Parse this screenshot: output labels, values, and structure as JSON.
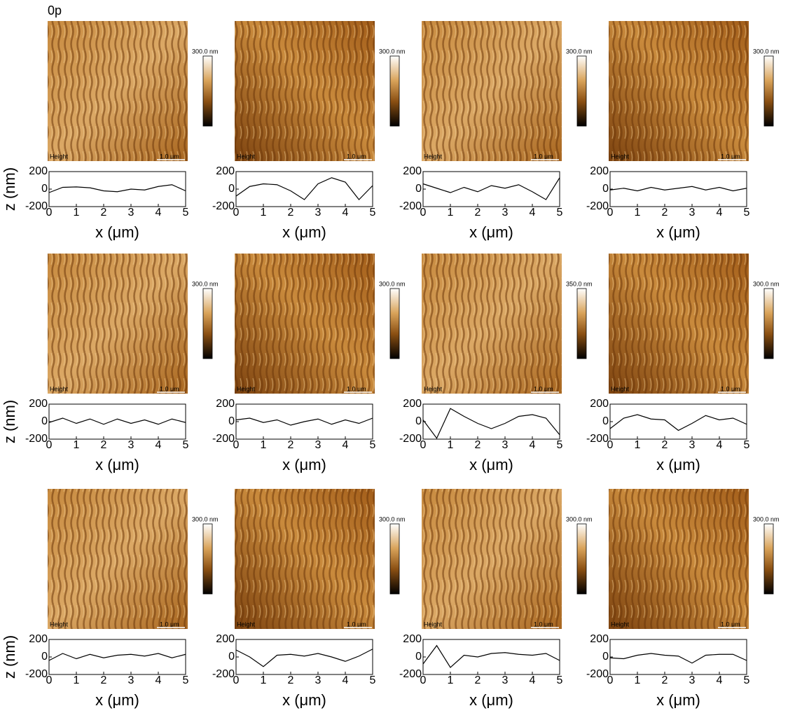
{
  "figure_label": "0p",
  "chart_data": [
    {
      "type": "line",
      "colorbar_label": "300.0 nm",
      "image_label": "Height",
      "scale_bar": "1.0 μm",
      "x": [
        0,
        0.5,
        1,
        1.5,
        2,
        2.5,
        3,
        3.5,
        4,
        4.5,
        5
      ],
      "values": [
        -40,
        20,
        25,
        15,
        -20,
        -30,
        0,
        -10,
        30,
        50,
        -20
      ],
      "color": "#000000",
      "xlim": [
        0,
        5
      ],
      "ylim": [
        -200,
        200
      ],
      "xticks": [
        0,
        1,
        2,
        3,
        4,
        5
      ],
      "yticks": [
        -200,
        0,
        200
      ],
      "xlabel": "x (μm)",
      "ylabel": "z (nm)"
    },
    {
      "type": "line",
      "colorbar_label": "300.0 nm",
      "image_label": "Height",
      "scale_bar": "1.0 μm",
      "x": [
        0,
        0.5,
        1,
        1.5,
        2,
        2.5,
        3,
        3.5,
        4,
        4.5,
        5
      ],
      "values": [
        -80,
        30,
        60,
        50,
        -20,
        -120,
        60,
        130,
        80,
        -120,
        40
      ],
      "color": "#000000",
      "xlim": [
        0,
        5
      ],
      "ylim": [
        -200,
        200
      ],
      "xticks": [
        0,
        1,
        2,
        3,
        4,
        5
      ],
      "yticks": [
        -200,
        0,
        200
      ],
      "xlabel": "x (μm)"
    },
    {
      "type": "line",
      "colorbar_label": "300.0 nm",
      "image_label": "Height",
      "scale_bar": "1.0 μm",
      "x": [
        0,
        0.5,
        1,
        1.5,
        2,
        2.5,
        3,
        3.5,
        4,
        4.5,
        5
      ],
      "values": [
        60,
        10,
        -40,
        20,
        -30,
        40,
        10,
        50,
        -30,
        -120,
        130
      ],
      "color": "#000000",
      "xlim": [
        0,
        5
      ],
      "ylim": [
        -200,
        200
      ],
      "xticks": [
        0,
        1,
        2,
        3,
        4,
        5
      ],
      "yticks": [
        -200,
        0,
        200
      ],
      "xlabel": "x (μm)"
    },
    {
      "type": "line",
      "colorbar_label": "300.0 nm",
      "image_label": "Height",
      "scale_bar": "1.0 μm",
      "x": [
        0,
        0.5,
        1,
        1.5,
        2,
        2.5,
        3,
        3.5,
        4,
        4.5,
        5
      ],
      "values": [
        -10,
        10,
        -20,
        20,
        -10,
        10,
        30,
        -10,
        20,
        -20,
        10
      ],
      "color": "#000000",
      "xlim": [
        0,
        5
      ],
      "ylim": [
        -200,
        200
      ],
      "xticks": [
        0,
        1,
        2,
        3,
        4,
        5
      ],
      "yticks": [
        -200,
        0,
        200
      ],
      "xlabel": "x (μm)"
    },
    {
      "type": "line",
      "colorbar_label": "300.0 nm",
      "image_label": "Height",
      "scale_bar": "1.0 μm",
      "x": [
        0,
        0.5,
        1,
        1.5,
        2,
        2.5,
        3,
        3.5,
        4,
        4.5,
        5
      ],
      "values": [
        -10,
        40,
        -20,
        30,
        -30,
        30,
        -20,
        20,
        -30,
        30,
        -10
      ],
      "color": "#000000",
      "xlim": [
        0,
        5
      ],
      "ylim": [
        -200,
        200
      ],
      "xticks": [
        0,
        1,
        2,
        3,
        4,
        5
      ],
      "yticks": [
        -200,
        0,
        200
      ],
      "xlabel": "x (μm)",
      "ylabel": "z (nm)"
    },
    {
      "type": "line",
      "colorbar_label": "300.0 nm",
      "image_label": "Height",
      "scale_bar": "1.0 μm",
      "x": [
        0,
        0.5,
        1,
        1.5,
        2,
        2.5,
        3,
        3.5,
        4,
        4.5,
        5
      ],
      "values": [
        20,
        40,
        -10,
        20,
        -40,
        0,
        30,
        -30,
        20,
        -20,
        40
      ],
      "color": "#000000",
      "xlim": [
        0,
        5
      ],
      "ylim": [
        -200,
        200
      ],
      "xticks": [
        0,
        1,
        2,
        3,
        4,
        5
      ],
      "yticks": [
        -200,
        0,
        200
      ],
      "xlabel": "x (μm)"
    },
    {
      "type": "line",
      "colorbar_label": "350.0 nm",
      "image_label": "Height",
      "scale_bar": "1.0 μm",
      "x": [
        0,
        0.5,
        1,
        1.5,
        2,
        2.5,
        3,
        3.5,
        4,
        4.5,
        5
      ],
      "values": [
        20,
        -190,
        150,
        60,
        -20,
        -80,
        -20,
        60,
        80,
        40,
        -150
      ],
      "color": "#000000",
      "xlim": [
        0,
        5
      ],
      "ylim": [
        -200,
        200
      ],
      "xticks": [
        0,
        1,
        2,
        3,
        4,
        5
      ],
      "yticks": [
        -200,
        0,
        200
      ],
      "xlabel": "x (μm)"
    },
    {
      "type": "line",
      "colorbar_label": "300.0 nm",
      "image_label": "Height",
      "scale_bar": "1.0 μm",
      "x": [
        0,
        0.5,
        1,
        1.5,
        2,
        2.5,
        3,
        3.5,
        4,
        4.5,
        5
      ],
      "values": [
        -80,
        40,
        80,
        30,
        20,
        -100,
        -20,
        70,
        20,
        40,
        -30
      ],
      "color": "#000000",
      "xlim": [
        0,
        5
      ],
      "ylim": [
        -200,
        200
      ],
      "xticks": [
        0,
        1,
        2,
        3,
        4,
        5
      ],
      "yticks": [
        -200,
        0,
        200
      ],
      "xlabel": "x (μm)"
    },
    {
      "type": "line",
      "colorbar_label": "300.0 nm",
      "image_label": "Height",
      "scale_bar": "1.0 μm",
      "x": [
        0,
        0.5,
        1,
        1.5,
        2,
        2.5,
        3,
        3.5,
        4,
        4.5,
        5
      ],
      "values": [
        -40,
        40,
        -20,
        30,
        -10,
        20,
        30,
        10,
        40,
        -10,
        30
      ],
      "color": "#000000",
      "xlim": [
        0,
        5
      ],
      "ylim": [
        -200,
        200
      ],
      "xticks": [
        0,
        1,
        2,
        3,
        4,
        5
      ],
      "yticks": [
        -200,
        0,
        200
      ],
      "xlabel": "x (μm)",
      "ylabel": "z (nm)"
    },
    {
      "type": "line",
      "colorbar_label": "300.0 nm",
      "image_label": "Height",
      "scale_bar": "1.0 μm",
      "x": [
        0,
        0.5,
        1,
        1.5,
        2,
        2.5,
        3,
        3.5,
        4,
        4.5,
        5
      ],
      "values": [
        80,
        0,
        -110,
        20,
        30,
        10,
        40,
        0,
        -50,
        10,
        90
      ],
      "color": "#000000",
      "xlim": [
        0,
        5
      ],
      "ylim": [
        -200,
        200
      ],
      "xticks": [
        0,
        1,
        2,
        3,
        4,
        5
      ],
      "yticks": [
        -200,
        0,
        200
      ],
      "xlabel": "x (μm)"
    },
    {
      "type": "line",
      "colorbar_label": "300.0 nm",
      "image_label": "Height",
      "scale_bar": "1.0 μm",
      "x": [
        0,
        0.5,
        1,
        1.5,
        2,
        2.5,
        3,
        3.5,
        4,
        4.5,
        5
      ],
      "values": [
        -80,
        130,
        -120,
        20,
        0,
        40,
        50,
        30,
        20,
        40,
        -40
      ],
      "color": "#000000",
      "xlim": [
        0,
        5
      ],
      "ylim": [
        -200,
        200
      ],
      "xticks": [
        0,
        1,
        2,
        3,
        4,
        5
      ],
      "yticks": [
        -200,
        0,
        200
      ],
      "xlabel": "x (μm)"
    },
    {
      "type": "line",
      "colorbar_label": "300.0 nm",
      "image_label": "Height",
      "scale_bar": "1.0 μm",
      "x": [
        0,
        0.5,
        1,
        1.5,
        2,
        2.5,
        3,
        3.5,
        4,
        4.5,
        5
      ],
      "values": [
        -10,
        -20,
        20,
        40,
        20,
        10,
        -70,
        20,
        30,
        30,
        -40
      ],
      "color": "#000000",
      "xlim": [
        0,
        5
      ],
      "ylim": [
        -200,
        200
      ],
      "xticks": [
        0,
        1,
        2,
        3,
        4,
        5
      ],
      "yticks": [
        -200,
        0,
        200
      ],
      "xlabel": "x (μm)"
    }
  ]
}
